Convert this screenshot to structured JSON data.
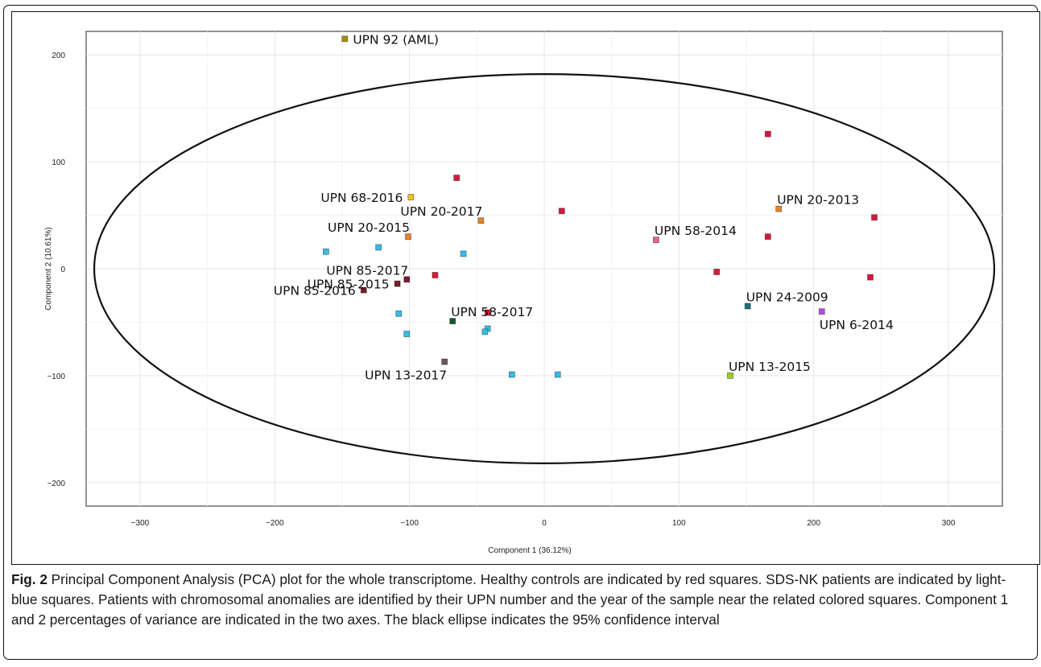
{
  "chart_data": {
    "type": "scatter",
    "xlabel": "Component 1 (36.12%)",
    "ylabel": "Component 2 (10.61%)",
    "xlim": [
      -340,
      340
    ],
    "ylim": [
      -222,
      222
    ],
    "xticks": [
      -300,
      -200,
      -100,
      0,
      100,
      200,
      300
    ],
    "yticks": [
      -200,
      -100,
      0,
      100,
      200
    ],
    "grid": true,
    "ellipse": {
      "label": "95% confidence interval",
      "center": [
        0,
        0
      ],
      "rx": 334,
      "ry": 182,
      "color": "#111111"
    },
    "series": [
      {
        "group": "healthy-controls",
        "color": "#d7183b",
        "points": [
          {
            "x": 166,
            "y": 126
          },
          {
            "x": -65,
            "y": 85
          },
          {
            "x": 13,
            "y": 54
          },
          {
            "x": 245,
            "y": 48
          },
          {
            "x": 166,
            "y": 30
          },
          {
            "x": 128,
            "y": -3
          },
          {
            "x": 242,
            "y": -8
          },
          {
            "x": -81,
            "y": -6
          },
          {
            "x": -42,
            "y": -41
          }
        ]
      },
      {
        "group": "sds-nk-patients",
        "color": "#36bde6",
        "points": [
          {
            "x": -162,
            "y": 16
          },
          {
            "x": -123,
            "y": 20
          },
          {
            "x": -60,
            "y": 14
          },
          {
            "x": -108,
            "y": -42
          },
          {
            "x": -102,
            "y": -61
          },
          {
            "x": -42,
            "y": -56
          },
          {
            "x": -44,
            "y": -59
          },
          {
            "x": -24,
            "y": -99
          },
          {
            "x": 10,
            "y": -99
          }
        ]
      },
      {
        "group": "labeled-patients",
        "points": [
          {
            "label": "UPN  92 (AML)",
            "x": -148,
            "y": 215,
            "color": "#a89012",
            "label_pos": "right"
          },
          {
            "label": "UPN  68-2016",
            "x": -99,
            "y": 67,
            "color": "#f2c21b",
            "label_pos": "left"
          },
          {
            "label": "UPN  20-2017",
            "x": -47,
            "y": 45,
            "color": "#e98526",
            "label_pos": "above-left"
          },
          {
            "label": "UPN  20-2015",
            "x": -101,
            "y": 30,
            "color": "#e98526",
            "label_pos": "above-left"
          },
          {
            "label": "UPN  85-2017",
            "x": -102,
            "y": -10,
            "color": "#7b1a2e",
            "label_pos": "above-left"
          },
          {
            "label": "UPN  85-2015",
            "x": -109,
            "y": -14,
            "color": "#7b1a2e",
            "label_pos": "left"
          },
          {
            "label": "UPN  85-2016",
            "x": -134,
            "y": -20,
            "color": "#7b1a2e",
            "label_pos": "left"
          },
          {
            "label": "UPN  58-2017",
            "x": -68,
            "y": -49,
            "color": "#0f5a2a",
            "label_pos": "above-right"
          },
          {
            "label": "UPN  13-2017",
            "x": -74,
            "y": -87,
            "color": "#6b5558",
            "label_pos": "below-left"
          },
          {
            "label": "UPN  20-2013",
            "x": 174,
            "y": 56,
            "color": "#e98526",
            "label_pos": "above-right"
          },
          {
            "label": "UPN  58-2014",
            "x": 83,
            "y": 27,
            "color": "#f0608e",
            "label_pos": "above-right"
          },
          {
            "label": "UPN  24-2009",
            "x": 151,
            "y": -35,
            "color": "#1d6e86",
            "label_pos": "above-right"
          },
          {
            "label": "UPN  6-2014",
            "x": 206,
            "y": -40,
            "color": "#b84be0",
            "label_pos": "below-right"
          },
          {
            "label": "UPN  13-2015",
            "x": 138,
            "y": -100,
            "color": "#9fca27",
            "label_pos": "above-right"
          }
        ]
      }
    ]
  },
  "caption": {
    "label": "Fig. 2",
    "text": " Principal Component Analysis (PCA) plot for the whole transcriptome. Healthy controls are indicated by red squares. SDS-NK patients are indicated by light-blue squares. Patients with chromosomal anomalies are identified by their UPN number and the year of the sample near the related colored squares. Component 1 and 2 percentages of variance are indicated in the two axes. The black ellipse indicates the 95% confidence interval"
  }
}
